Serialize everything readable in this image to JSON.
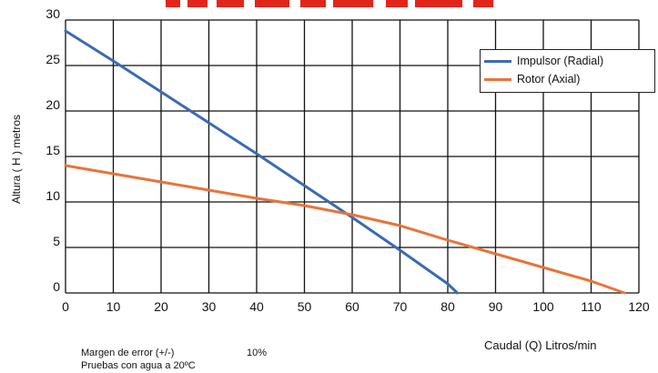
{
  "colors": {
    "impulsor": "#3a6ab5",
    "rotor": "#e8743a",
    "title_fragment": "#e0261b",
    "grid": "#111111"
  },
  "axis": {
    "ylabel": "Altura  ( H ) metros",
    "xlabel": "Caudal (Q)  Litros/min"
  },
  "notes": {
    "error_label": "Margen de error (+/-)",
    "error_value": "10%",
    "test_conditions": "Pruebas con agua a 20ºC"
  },
  "legend": {
    "items": [
      {
        "label": "Impulsor (Radial)"
      },
      {
        "label": "Rotor (Axial)"
      }
    ]
  },
  "chart_data": {
    "type": "line",
    "xlabel": "Caudal (Q)  Litros/min",
    "ylabel": "Altura  ( H ) metros",
    "xlim": [
      0,
      120
    ],
    "ylim": [
      0,
      30
    ],
    "x_ticks": [
      0,
      10,
      20,
      30,
      40,
      50,
      60,
      70,
      80,
      90,
      100,
      110,
      120
    ],
    "y_ticks": [
      0,
      5,
      10,
      15,
      20,
      25,
      30
    ],
    "x_tick_labels": [
      "0",
      "10",
      "20",
      "30",
      "40",
      "50",
      "60",
      "70",
      "80",
      "90",
      "100",
      "110",
      "120"
    ],
    "y_tick_labels": [
      "0",
      "5",
      "10",
      "15",
      "20",
      "25",
      "30"
    ],
    "grid": true,
    "legend_position": "top-right",
    "series": [
      {
        "name": "Impulsor (Radial)",
        "x": [
          0,
          10,
          20,
          30,
          40,
          50,
          60,
          70,
          80,
          82
        ],
        "y": [
          28.8,
          25.5,
          22.1,
          18.7,
          15.3,
          11.8,
          8.3,
          4.7,
          1.0,
          0
        ]
      },
      {
        "name": "Rotor (Axial)",
        "x": [
          0,
          10,
          20,
          30,
          40,
          50,
          60,
          70,
          80,
          90,
          100,
          110,
          117
        ],
        "y": [
          14.0,
          13.1,
          12.2,
          11.3,
          10.4,
          9.6,
          8.6,
          7.4,
          5.8,
          4.3,
          2.8,
          1.3,
          0
        ]
      }
    ]
  }
}
